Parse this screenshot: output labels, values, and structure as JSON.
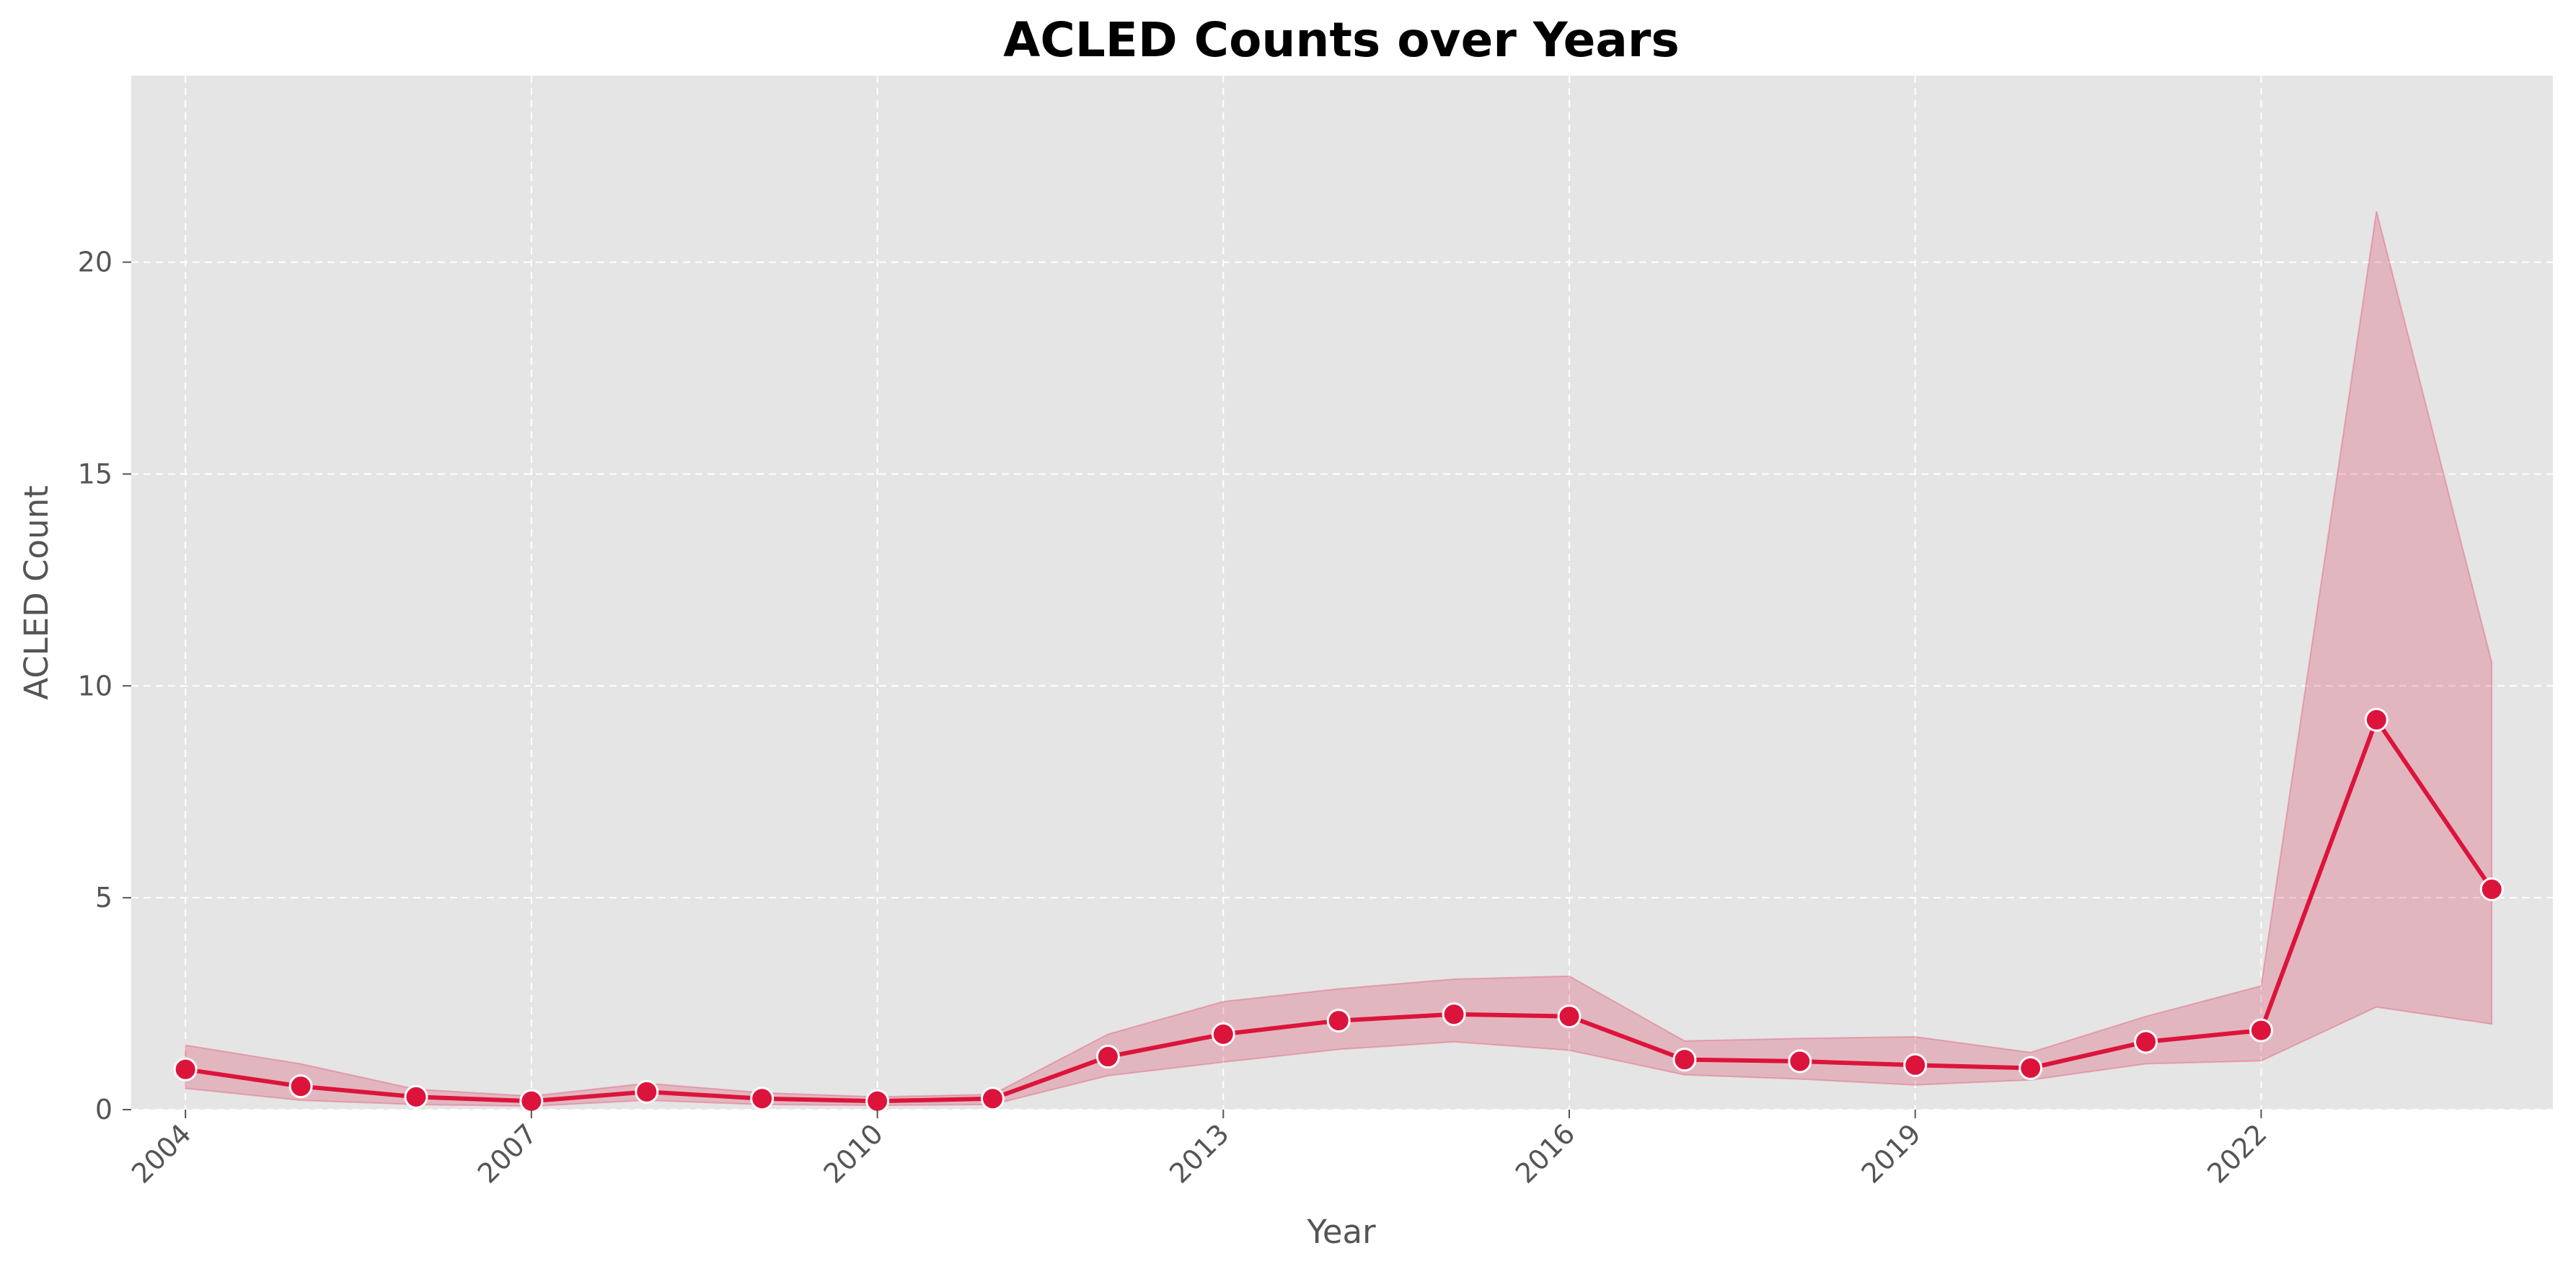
{
  "chart_data": {
    "type": "line",
    "title": "ACLED Counts over Years",
    "xlabel": "Year",
    "ylabel": "ACLED Count",
    "x": [
      2004,
      2005,
      2006,
      2007,
      2008,
      2009,
      2010,
      2011,
      2012,
      2013,
      2014,
      2015,
      2016,
      2017,
      2018,
      2019,
      2020,
      2021,
      2022,
      2023,
      2024
    ],
    "series": [
      {
        "values": [
          0.95,
          0.55,
          0.3,
          0.2,
          0.42,
          0.26,
          0.2,
          0.26,
          1.25,
          1.78,
          2.1,
          2.25,
          2.2,
          1.18,
          1.14,
          1.05,
          0.98,
          1.6,
          1.87,
          9.2,
          5.2
        ],
        "ci_lower": [
          0.5,
          0.22,
          0.12,
          0.08,
          0.22,
          0.12,
          0.1,
          0.12,
          0.8,
          1.12,
          1.42,
          1.6,
          1.4,
          0.82,
          0.72,
          0.58,
          0.7,
          1.08,
          1.15,
          2.42,
          2.02
        ],
        "ci_upper": [
          1.52,
          1.08,
          0.48,
          0.32,
          0.62,
          0.4,
          0.3,
          0.36,
          1.78,
          2.55,
          2.85,
          3.08,
          3.15,
          1.62,
          1.68,
          1.72,
          1.35,
          2.2,
          2.92,
          21.2,
          10.55
        ]
      }
    ],
    "xticks": [
      2004,
      2007,
      2010,
      2013,
      2016,
      2019,
      2022
    ],
    "yticks": [
      0,
      5,
      10,
      15,
      20
    ],
    "xlim": [
      2003.53,
      2024.53
    ],
    "ylim": [
      0,
      24.4
    ],
    "grid": true,
    "colors": {
      "line": "#dc143c",
      "band": "#dc143c",
      "plot_bg": "#e5e5e5",
      "grid": "#ffffff",
      "marker_edge": "#ffffff"
    }
  }
}
